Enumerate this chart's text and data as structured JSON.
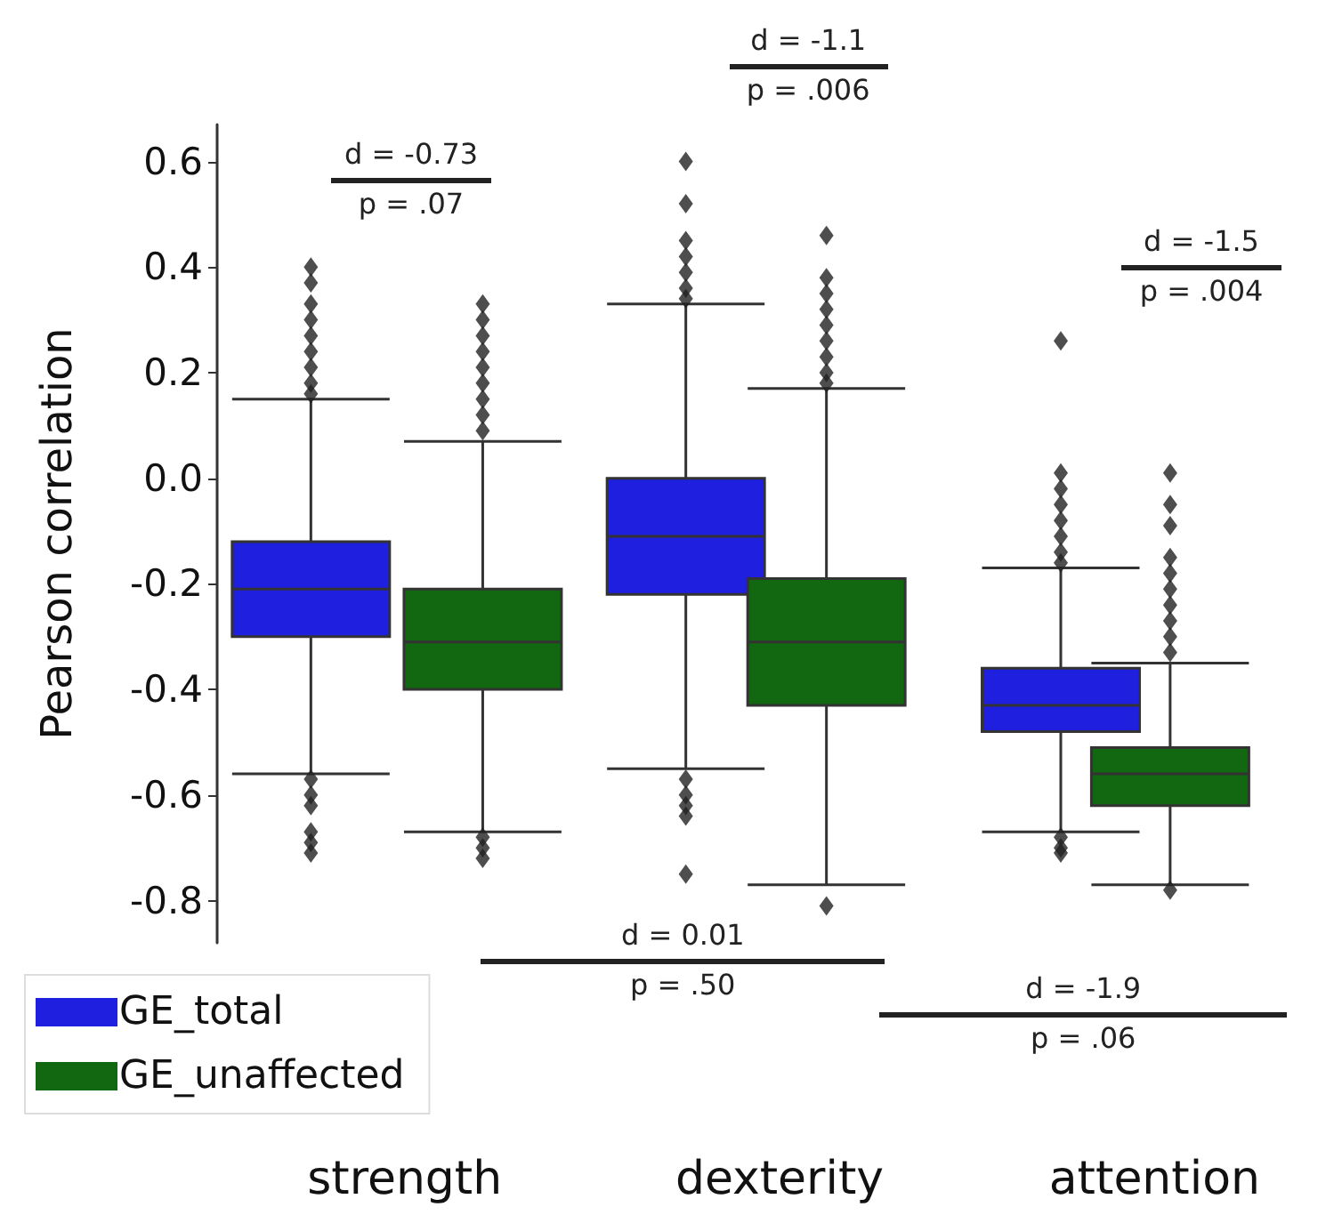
{
  "chart_data": {
    "type": "box",
    "ylabel": "Pearson correlation",
    "categories": [
      "strength",
      "dexterity",
      "attention"
    ],
    "series": [
      {
        "name": "GE_total",
        "color": "#1f1fe0",
        "boxes": [
          {
            "low": -0.56,
            "q1": -0.3,
            "median": -0.21,
            "q3": -0.12,
            "high": 0.15,
            "outliers": [
              0.4,
              0.37,
              0.33,
              0.3,
              0.27,
              0.24,
              0.21,
              0.18,
              0.16,
              -0.57,
              -0.6,
              -0.62,
              -0.67,
              -0.69,
              -0.71
            ]
          },
          {
            "low": -0.55,
            "q1": -0.22,
            "median": -0.11,
            "q3": 0.0,
            "high": 0.33,
            "outliers": [
              0.6,
              0.52,
              0.45,
              0.42,
              0.39,
              0.36,
              0.34,
              -0.57,
              -0.6,
              -0.62,
              -0.64,
              -0.75
            ]
          },
          {
            "low": -0.67,
            "q1": -0.48,
            "median": -0.43,
            "q3": -0.36,
            "high": -0.17,
            "outliers": [
              0.26,
              0.01,
              -0.02,
              -0.05,
              -0.08,
              -0.11,
              -0.14,
              -0.16,
              -0.68,
              -0.7,
              -0.71
            ]
          }
        ]
      },
      {
        "name": "GE_unaffected",
        "color": "#116811",
        "boxes": [
          {
            "low": -0.67,
            "q1": -0.4,
            "median": -0.31,
            "q3": -0.21,
            "high": 0.07,
            "outliers": [
              0.33,
              0.3,
              0.27,
              0.24,
              0.21,
              0.18,
              0.15,
              0.12,
              0.09,
              -0.68,
              -0.7,
              -0.72
            ]
          },
          {
            "low": -0.77,
            "q1": -0.43,
            "median": -0.31,
            "q3": -0.19,
            "high": 0.17,
            "outliers": [
              0.46,
              0.38,
              0.35,
              0.32,
              0.29,
              0.26,
              0.23,
              0.2,
              0.18,
              -0.81
            ]
          },
          {
            "low": -0.77,
            "q1": -0.62,
            "median": -0.56,
            "q3": -0.51,
            "high": -0.35,
            "outliers": [
              0.01,
              -0.05,
              -0.09,
              -0.15,
              -0.18,
              -0.21,
              -0.24,
              -0.27,
              -0.3,
              -0.33,
              -0.78
            ]
          }
        ]
      }
    ],
    "ylim": [
      -0.88,
      0.67
    ],
    "yticks": [
      -0.8,
      -0.6,
      -0.4,
      -0.2,
      {
        "value": 0,
        "label": "0.0"
      },
      0.2,
      0.4,
      0.6
    ],
    "marker": "diamond",
    "legend": "bottom left",
    "annotations": [
      "d = -0.73",
      "p = .07",
      "d = -1.1",
      "p = .006",
      "d = -1.5",
      "p = .004",
      "d = 0.01",
      "p = .50",
      "d = -1.9",
      "p = .06"
    ]
  }
}
